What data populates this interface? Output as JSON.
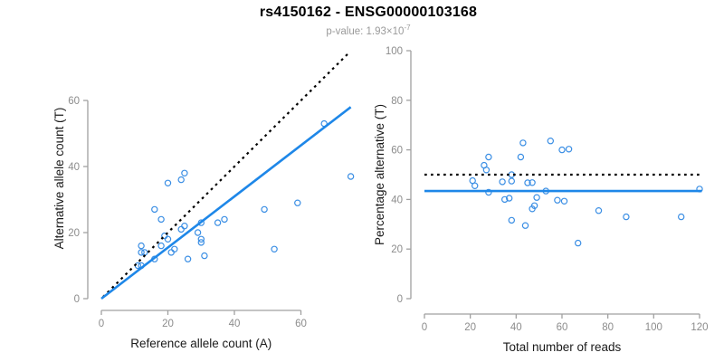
{
  "header": {
    "title": "rs4150162 - ENSG00000103168",
    "subtitle_prefix": "p-value: ",
    "p_mantissa": "1.93",
    "multiply_sign": "×",
    "p_base": "10",
    "p_exponent": "-7"
  },
  "colors": {
    "accent_blue": "#1E87E8",
    "point_blue": "#3A8EE4",
    "axis_gray": "#a0a0a0",
    "tick_label_gray": "#8c8c8c",
    "text_black": "#1a1a1a",
    "dotted_black": "#000000"
  },
  "chart_data": [
    {
      "type": "scatter",
      "panel": "allele-counts",
      "xlabel": "Reference allele count (A)",
      "ylabel": "Alternative allele count (T)",
      "xlim": [
        0,
        77
      ],
      "ylim": [
        0,
        77
      ],
      "xticks": [
        0,
        20,
        40,
        60
      ],
      "yticks": [
        0,
        20,
        40,
        60
      ],
      "grid": false,
      "legend": false,
      "points": [
        [
          11,
          10
        ],
        [
          12,
          10
        ],
        [
          12,
          14
        ],
        [
          12,
          16
        ],
        [
          13,
          14
        ],
        [
          16,
          12
        ],
        [
          16,
          27
        ],
        [
          18,
          16
        ],
        [
          18,
          24
        ],
        [
          19,
          19
        ],
        [
          20,
          18
        ],
        [
          20,
          35
        ],
        [
          21,
          14
        ],
        [
          22,
          15
        ],
        [
          24,
          21
        ],
        [
          25,
          22
        ],
        [
          24,
          36
        ],
        [
          25,
          38
        ],
        [
          26,
          12
        ],
        [
          29,
          20
        ],
        [
          30,
          17
        ],
        [
          30,
          18
        ],
        [
          30,
          23
        ],
        [
          31,
          13
        ],
        [
          35,
          23
        ],
        [
          37,
          24
        ],
        [
          49,
          27
        ],
        [
          52,
          15
        ],
        [
          59,
          29
        ],
        [
          67,
          53
        ],
        [
          75,
          37
        ]
      ],
      "lines": [
        {
          "name": "identity-line",
          "style": "dotted",
          "color": "#000000",
          "x1": 0.5,
          "y1": 0.5,
          "x2": 74.5,
          "y2": 74.5
        },
        {
          "name": "regression-line",
          "style": "solid",
          "color": "#1E87E8",
          "x1": 0,
          "y1": 0,
          "x2": 75,
          "y2": 58
        }
      ]
    },
    {
      "type": "scatter",
      "panel": "percentage-vs-total",
      "xlabel": "Total number of reads",
      "ylabel": "Percentage alternative (T)",
      "xlim": [
        0,
        122
      ],
      "ylim": [
        0,
        100
      ],
      "xticks": [
        0,
        20,
        40,
        60,
        80,
        100,
        120
      ],
      "yticks": [
        0,
        20,
        40,
        60,
        80,
        100
      ],
      "grid": false,
      "legend": false,
      "points": [
        [
          21,
          47.6
        ],
        [
          22,
          45.5
        ],
        [
          26,
          53.8
        ],
        [
          28,
          57.1
        ],
        [
          27,
          51.9
        ],
        [
          28,
          42.9
        ],
        [
          43,
          62.8
        ],
        [
          34,
          47.1
        ],
        [
          42,
          57.1
        ],
        [
          38,
          50.0
        ],
        [
          38,
          47.4
        ],
        [
          55,
          63.6
        ],
        [
          35,
          40.0
        ],
        [
          37,
          40.5
        ],
        [
          45,
          46.7
        ],
        [
          47,
          46.8
        ],
        [
          60,
          60.0
        ],
        [
          63,
          60.3
        ],
        [
          38,
          31.6
        ],
        [
          49,
          40.8
        ],
        [
          47,
          36.2
        ],
        [
          48,
          37.5
        ],
        [
          53,
          43.4
        ],
        [
          44,
          29.5
        ],
        [
          58,
          39.7
        ],
        [
          61,
          39.3
        ],
        [
          76,
          35.5
        ],
        [
          67,
          22.4
        ],
        [
          88,
          33.0
        ],
        [
          120,
          44.2
        ],
        [
          112,
          33.0
        ]
      ],
      "lines": [
        {
          "name": "fifty-percent-line",
          "style": "dotted",
          "color": "#000000",
          "x1": 0,
          "y1": 50,
          "x2": 121,
          "y2": 50
        },
        {
          "name": "mean-percentage-line",
          "style": "solid",
          "color": "#1E87E8",
          "x1": 0,
          "y1": 43.4,
          "x2": 121,
          "y2": 43.4
        }
      ]
    }
  ]
}
